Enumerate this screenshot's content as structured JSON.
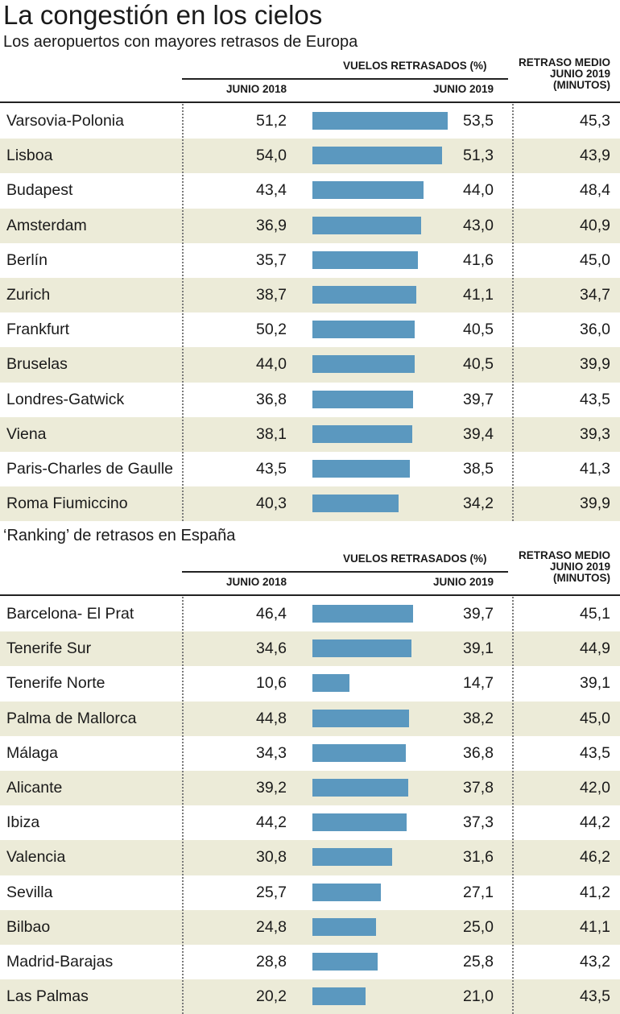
{
  "chart_data": {
    "type": "table",
    "title": "La congestión en los cielos",
    "header": {
      "vuelos": "VUELOS RETRASADOS (%)",
      "y2018": "JUNIO 2018",
      "y2019": "JUNIO 2019",
      "medio": [
        "RETRASO MEDIO",
        "JUNIO 2019",
        "(MINUTOS)"
      ]
    },
    "bar_scale_max": 53.5,
    "sections": [
      {
        "subtitle": "Los aeropuertos con mayores retrasos de Europa",
        "rows": [
          {
            "name": "Varsovia-Polonia",
            "y2018": "51,2",
            "y2019": "53,5",
            "value2019": 53.5,
            "medio": "45,3"
          },
          {
            "name": "Lisboa",
            "y2018": "54,0",
            "y2019": "51,3",
            "value2019": 51.3,
            "medio": "43,9"
          },
          {
            "name": "Budapest",
            "y2018": "43,4",
            "y2019": "44,0",
            "value2019": 44.0,
            "medio": "48,4"
          },
          {
            "name": "Amsterdam",
            "y2018": "36,9",
            "y2019": "43,0",
            "value2019": 43.0,
            "medio": "40,9"
          },
          {
            "name": "Berlín",
            "y2018": "35,7",
            "y2019": "41,6",
            "value2019": 41.6,
            "medio": "45,0"
          },
          {
            "name": "Zurich",
            "y2018": "38,7",
            "y2019": "41,1",
            "value2019": 41.1,
            "medio": "34,7"
          },
          {
            "name": "Frankfurt",
            "y2018": "50,2",
            "y2019": "40,5",
            "value2019": 40.5,
            "medio": "36,0"
          },
          {
            "name": "Bruselas",
            "y2018": "44,0",
            "y2019": "40,5",
            "value2019": 40.5,
            "medio": "39,9"
          },
          {
            "name": "Londres-Gatwick",
            "y2018": "36,8",
            "y2019": "39,7",
            "value2019": 39.7,
            "medio": "43,5"
          },
          {
            "name": "Viena",
            "y2018": "38,1",
            "y2019": "39,4",
            "value2019": 39.4,
            "medio": "39,3"
          },
          {
            "name": "Paris-Charles de Gaulle",
            "y2018": "43,5",
            "y2019": "38,5",
            "value2019": 38.5,
            "medio": "41,3"
          },
          {
            "name": "Roma Fiumiccino",
            "y2018": "40,3",
            "y2019": "34,2",
            "value2019": 34.2,
            "medio": "39,9"
          }
        ]
      },
      {
        "subtitle": "‘Ranking’ de retrasos en España",
        "rows": [
          {
            "name": "Barcelona- El Prat",
            "y2018": "46,4",
            "y2019": "39,7",
            "value2019": 39.7,
            "medio": "45,1"
          },
          {
            "name": "Tenerife Sur",
            "y2018": "34,6",
            "y2019": "39,1",
            "value2019": 39.1,
            "medio": "44,9"
          },
          {
            "name": "Tenerife Norte",
            "y2018": "10,6",
            "y2019": "14,7",
            "value2019": 14.7,
            "medio": "39,1"
          },
          {
            "name": "Palma de Mallorca",
            "y2018": "44,8",
            "y2019": "38,2",
            "value2019": 38.2,
            "medio": "45,0"
          },
          {
            "name": "Málaga",
            "y2018": "34,3",
            "y2019": "36,8",
            "value2019": 36.8,
            "medio": "43,5"
          },
          {
            "name": "Alicante",
            "y2018": "39,2",
            "y2019": "37,8",
            "value2019": 37.8,
            "medio": "42,0"
          },
          {
            "name": "Ibiza",
            "y2018": "44,2",
            "y2019": "37,3",
            "value2019": 37.3,
            "medio": "44,2"
          },
          {
            "name": "Valencia",
            "y2018": "30,8",
            "y2019": "31,6",
            "value2019": 31.6,
            "medio": "46,2"
          },
          {
            "name": "Sevilla",
            "y2018": "25,7",
            "y2019": "27,1",
            "value2019": 27.1,
            "medio": "41,2"
          },
          {
            "name": "Bilbao",
            "y2018": "24,8",
            "y2019": "25,0",
            "value2019": 25.0,
            "medio": "41,1"
          },
          {
            "name": "Madrid-Barajas",
            "y2018": "28,8",
            "y2019": "25,8",
            "value2019": 25.8,
            "medio": "43,2"
          },
          {
            "name": "Las Palmas",
            "y2018": "20,2",
            "y2019": "21,0",
            "value2019": 21.0,
            "medio": "43,5"
          }
        ]
      }
    ],
    "colors": {
      "bar": "#5b98bf",
      "shade": "#ecebd8"
    }
  }
}
